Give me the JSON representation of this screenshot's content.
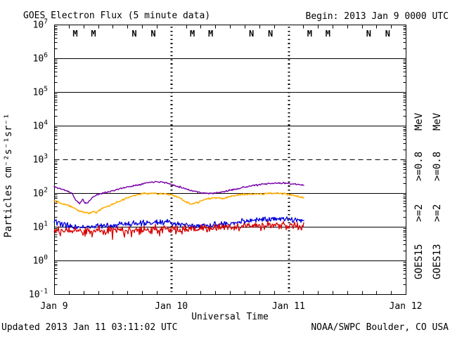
{
  "header": {
    "title": "GOES Electron Flux (5 minute data)",
    "begin": "Begin: 2013 Jan 9 0000 UTC"
  },
  "footer": {
    "updated": "Updated 2013 Jan 11 03:11:02 UTC",
    "source": "NOAA/SWPC Boulder, CO USA"
  },
  "chart_data": {
    "type": "line",
    "title": "GOES Electron Flux (5 minute data)",
    "xlabel": "Universal Time",
    "ylabel": "Particles cm⁻²s⁻¹sr⁻¹",
    "x_axis": {
      "ticks": [
        "Jan 9",
        "Jan 10",
        "Jan 11",
        "Jan 12"
      ],
      "range_days": 3,
      "minor_tick_hours": 3,
      "dotted_day_gridlines": [
        "Jan 10",
        "Jan 11"
      ]
    },
    "y_axis": {
      "scale": "log",
      "exponents": [
        7,
        6,
        5,
        4,
        3,
        2,
        1,
        0,
        -1
      ],
      "ylim": [
        0.1,
        10000000
      ],
      "dashed_line_at": 1000,
      "grid": true
    },
    "data_end_note": "data ends Jan 11 ~03:10 UTC",
    "series": [
      {
        "id": "goes13-e08",
        "name": "GOES13 >=0.8 MeV",
        "color": "#ffaf0a",
        "width": 1.6,
        "seed": 22,
        "noise": 0.04,
        "keypoints": [
          [
            0,
            60
          ],
          [
            0.05,
            52
          ],
          [
            0.1,
            46
          ],
          [
            0.15,
            40
          ],
          [
            0.2,
            31
          ],
          [
            0.25,
            27
          ],
          [
            0.3,
            25
          ],
          [
            0.33,
            29
          ],
          [
            0.36,
            27
          ],
          [
            0.4,
            33
          ],
          [
            0.48,
            44
          ],
          [
            0.56,
            58
          ],
          [
            0.64,
            75
          ],
          [
            0.72,
            92
          ],
          [
            0.8,
            99
          ],
          [
            0.88,
            97
          ],
          [
            0.94,
            95
          ],
          [
            1,
            88
          ],
          [
            1.06,
            76
          ],
          [
            1.12,
            55
          ],
          [
            1.17,
            47
          ],
          [
            1.22,
            52
          ],
          [
            1.28,
            63
          ],
          [
            1.34,
            70
          ],
          [
            1.4,
            74
          ],
          [
            1.45,
            70
          ],
          [
            1.5,
            78
          ],
          [
            1.58,
            88
          ],
          [
            1.66,
            92
          ],
          [
            1.74,
            95
          ],
          [
            1.82,
            96
          ],
          [
            1.9,
            98
          ],
          [
            1.98,
            95
          ],
          [
            2.04,
            88
          ],
          [
            2.13,
            72
          ]
        ]
      },
      {
        "id": "goes15-e08",
        "name": "GOES15 >=0.8 MeV",
        "color": "#7800a8",
        "width": 1.4,
        "seed": 11,
        "noise": 0.035,
        "keypoints": [
          [
            0,
            155
          ],
          [
            0.05,
            135
          ],
          [
            0.1,
            120
          ],
          [
            0.15,
            100
          ],
          [
            0.19,
            58
          ],
          [
            0.22,
            48
          ],
          [
            0.245,
            68
          ],
          [
            0.26,
            50
          ],
          [
            0.29,
            52
          ],
          [
            0.32,
            72
          ],
          [
            0.36,
            88
          ],
          [
            0.42,
            100
          ],
          [
            0.5,
            118
          ],
          [
            0.6,
            145
          ],
          [
            0.7,
            172
          ],
          [
            0.8,
            205
          ],
          [
            0.88,
            222
          ],
          [
            0.95,
            205
          ],
          [
            1,
            180
          ],
          [
            1.08,
            150
          ],
          [
            1.16,
            122
          ],
          [
            1.24,
            105
          ],
          [
            1.32,
            97
          ],
          [
            1.4,
            102
          ],
          [
            1.5,
            120
          ],
          [
            1.6,
            145
          ],
          [
            1.7,
            168
          ],
          [
            1.8,
            185
          ],
          [
            1.9,
            198
          ],
          [
            2,
            195
          ],
          [
            2.06,
            183
          ],
          [
            2.13,
            168
          ]
        ]
      },
      {
        "id": "goes15-e2",
        "name": "GOES15 >=2 MeV",
        "color": "#0000d8",
        "width": 1.3,
        "seed": 33,
        "noise": 0.13,
        "spikes": {
          "p": 0.02,
          "lo": 0.78,
          "hi": 0.9
        },
        "keypoints": [
          [
            0,
            15
          ],
          [
            0.05,
            12
          ],
          [
            0.1,
            10.5
          ],
          [
            0.2,
            10
          ],
          [
            0.3,
            10
          ],
          [
            0.4,
            10.5
          ],
          [
            0.5,
            11
          ],
          [
            0.6,
            11.5
          ],
          [
            0.7,
            12
          ],
          [
            0.8,
            13
          ],
          [
            0.9,
            14
          ],
          [
            1,
            13
          ],
          [
            1.1,
            11.5
          ],
          [
            1.2,
            11
          ],
          [
            1.3,
            11
          ],
          [
            1.4,
            12
          ],
          [
            1.5,
            12.5
          ],
          [
            1.6,
            14
          ],
          [
            1.7,
            15.5
          ],
          [
            1.8,
            17
          ],
          [
            1.9,
            17.5
          ],
          [
            2,
            17
          ],
          [
            2.06,
            16
          ],
          [
            2.13,
            15
          ]
        ]
      },
      {
        "id": "goes13-e2",
        "name": "GOES13 >=2 MeV",
        "color": "#d80000",
        "width": 1.3,
        "seed": 44,
        "noise": 0.19,
        "spikes": {
          "p": 0.05,
          "lo": 0.62,
          "hi": 0.8
        },
        "keypoints": [
          [
            0,
            8
          ],
          [
            0.1,
            7.5
          ],
          [
            0.2,
            7.5
          ],
          [
            0.3,
            7.2
          ],
          [
            0.4,
            7.5
          ],
          [
            0.5,
            7.8
          ],
          [
            0.6,
            8
          ],
          [
            0.7,
            8.2
          ],
          [
            0.8,
            8.5
          ],
          [
            0.9,
            8.8
          ],
          [
            1,
            8.5
          ],
          [
            1.1,
            8.2
          ],
          [
            1.2,
            8.5
          ],
          [
            1.3,
            9
          ],
          [
            1.4,
            9.5
          ],
          [
            1.5,
            10
          ],
          [
            1.6,
            10.5
          ],
          [
            1.7,
            11
          ],
          [
            1.8,
            11.5
          ],
          [
            1.9,
            11.5
          ],
          [
            2,
            11
          ],
          [
            2.06,
            10.5
          ],
          [
            2.13,
            10
          ]
        ]
      }
    ],
    "event_markers": {
      "days": [
        0,
        1,
        2
      ],
      "per_day": [
        {
          "label": "M",
          "color": "#cc0000",
          "day_offset": 0.18
        },
        {
          "label": "M",
          "color": "#0000cc",
          "day_offset": 0.336
        },
        {
          "label": "N",
          "color": "#cc0000",
          "day_offset": 0.684
        },
        {
          "label": "N",
          "color": "#0000cc",
          "day_offset": 0.846
        }
      ]
    },
    "legend": {
      "position": "right-rotated",
      "columns": [
        {
          "name": "GOES15",
          "segments": [
            {
              "text": "GOES15",
              "color": "#000000"
            },
            {
              "text": ">=2",
              "color": "#0000d8"
            },
            {
              "text": ">=0.8",
              "color": "#7800a8"
            },
            {
              "text": "MeV",
              "color": "#000000"
            }
          ]
        },
        {
          "name": "GOES13",
          "segments": [
            {
              "text": "GOES13",
              "color": "#000000"
            },
            {
              "text": ">=2",
              "color": "#d80000"
            },
            {
              "text": ">=0.8",
              "color": "#ffaf0a"
            },
            {
              "text": "MeV",
              "color": "#000000"
            }
          ]
        }
      ]
    }
  }
}
